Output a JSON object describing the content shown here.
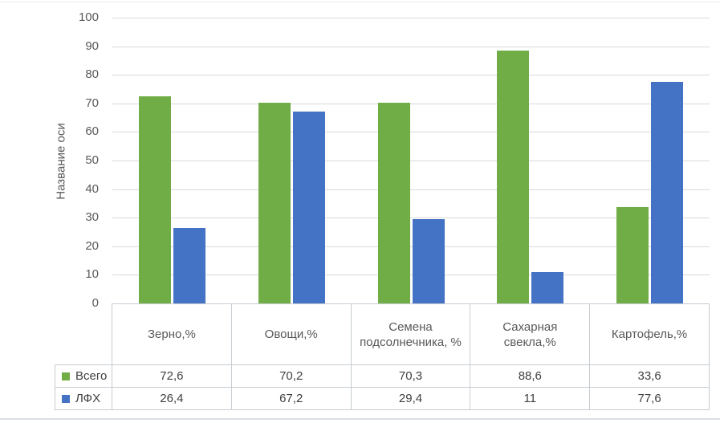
{
  "chart_data": {
    "type": "bar",
    "title": "",
    "ylabel": "Название оси",
    "xlabel": "",
    "ylim": [
      0,
      100
    ],
    "yticks": [
      0,
      10,
      20,
      30,
      40,
      50,
      60,
      70,
      80,
      90,
      100
    ],
    "ytick_labels": [
      "0",
      "10",
      "20",
      "30",
      "40",
      "50",
      "60",
      "70",
      "80",
      "90",
      "100"
    ],
    "grid": true,
    "grid_color": "#d9d9d9",
    "legend_position": "left-of-data-table",
    "data_table_shown": true,
    "categories": [
      "Зерно,%",
      "Овощи,%",
      "Семена подсолнечника, %",
      "Сахарная свекла,%",
      "Картофель,%"
    ],
    "series": [
      {
        "name": "Всего",
        "color": "#70AD47",
        "values": [
          72.6,
          70.2,
          70.3,
          88.6,
          33.6
        ],
        "value_labels": [
          "72,6",
          "70,2",
          "70,3",
          "88,6",
          "33,6"
        ]
      },
      {
        "name": "ЛФХ",
        "color": "#4472C4",
        "values": [
          26.4,
          67.2,
          29.4,
          11,
          77.6
        ],
        "value_labels": [
          "26,4",
          "67,2",
          "29,4",
          "11",
          "77,6"
        ]
      }
    ]
  }
}
